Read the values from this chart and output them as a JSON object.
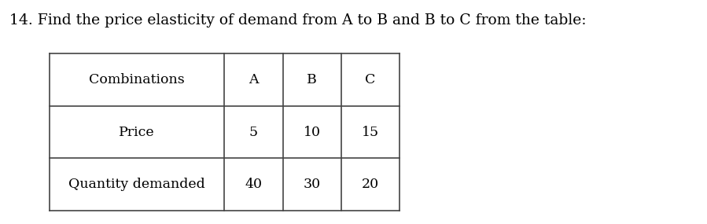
{
  "title": "14. Find the price elasticity of demand from A to B and B to C from the table:",
  "title_fontsize": 13.5,
  "col_labels": [
    "Combinations",
    "A",
    "B",
    "C"
  ],
  "row1_label": "Price",
  "row1_values": [
    "5",
    "10",
    "15"
  ],
  "row2_label": "Quantity demanded",
  "row2_values": [
    "40",
    "30",
    "20"
  ],
  "background_color": "#ffffff",
  "font_family": "DejaVu Serif",
  "cell_fontsize": 12.5,
  "line_color": "#444444",
  "line_width": 1.2
}
